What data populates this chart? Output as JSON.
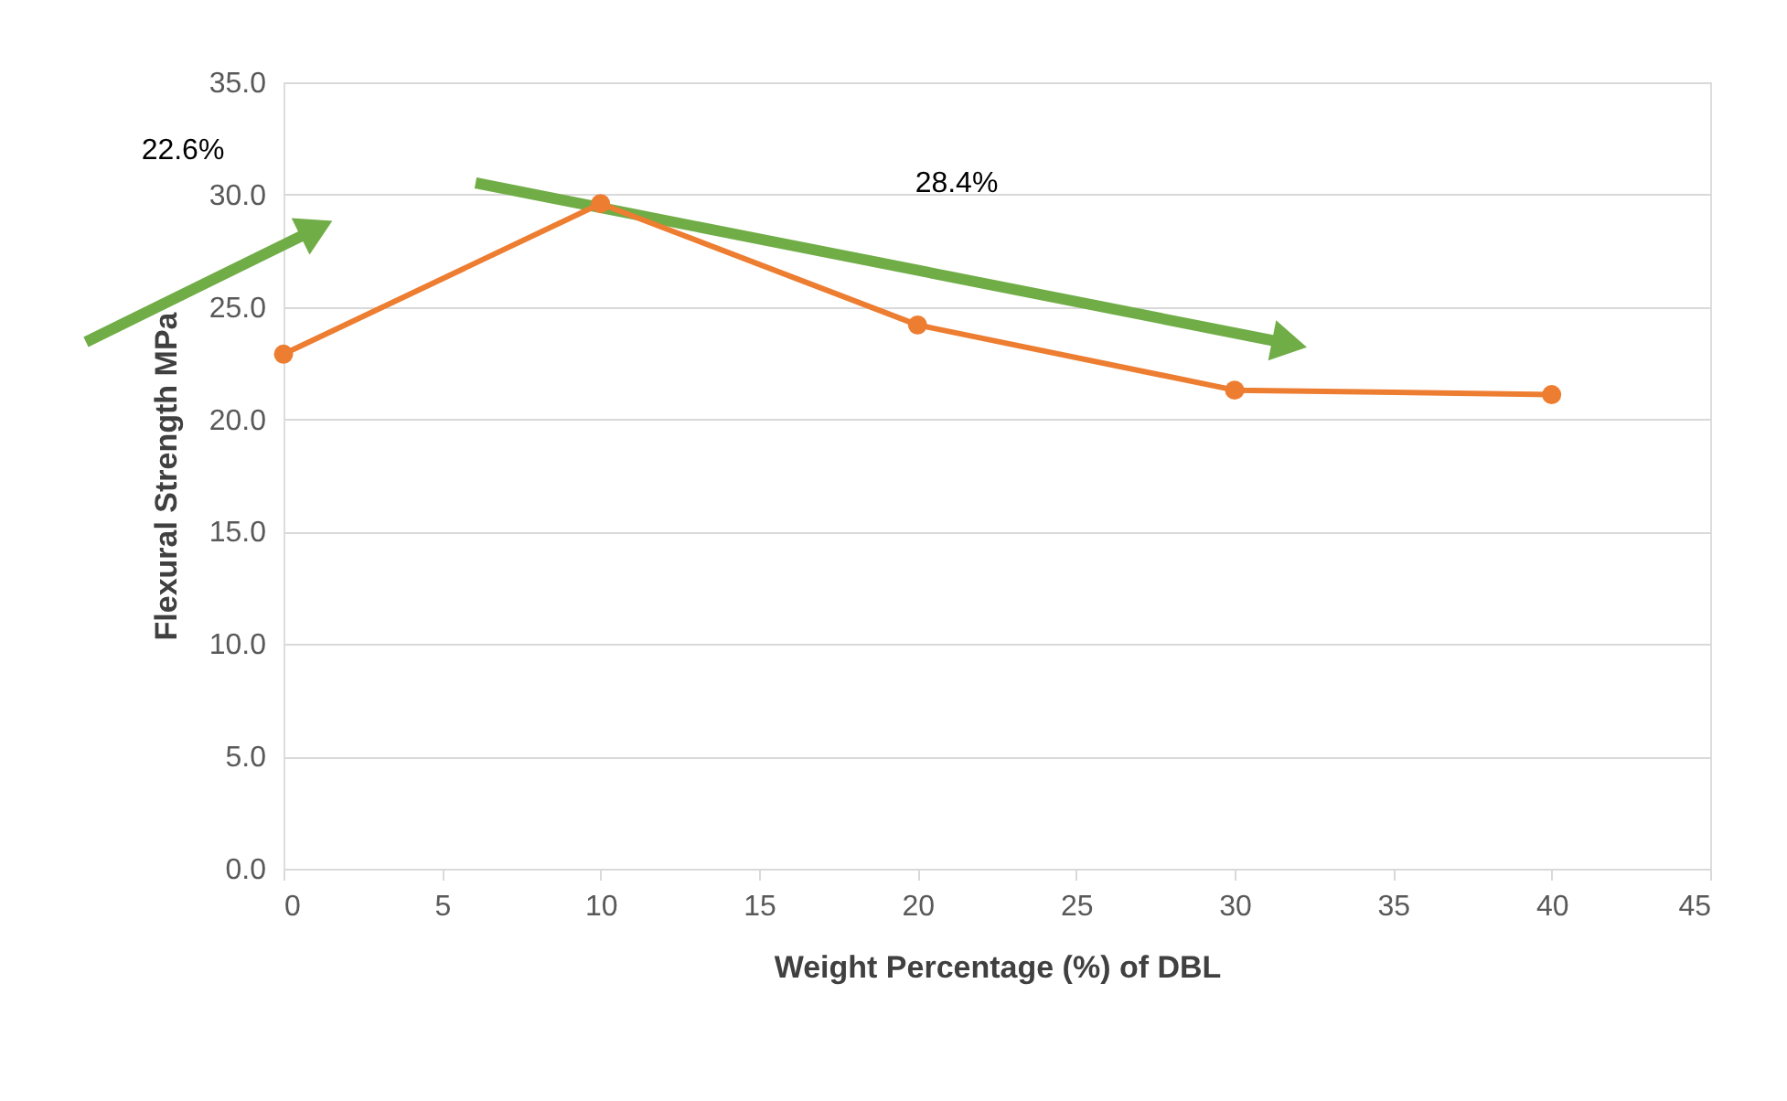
{
  "chart_data": {
    "type": "line",
    "xlabel": "Weight Percentage (%) of DBL",
    "ylabel": "Flexural Strength MPa",
    "x": [
      0,
      10,
      20,
      30,
      40
    ],
    "series": [
      {
        "color": "#ed7d31",
        "values": [
          22.9,
          29.6,
          24.2,
          21.3,
          21.1
        ]
      }
    ],
    "xlim": [
      0,
      45
    ],
    "xticks": [
      0,
      5,
      10,
      15,
      20,
      25,
      30,
      35,
      40,
      45
    ],
    "ylim": [
      0,
      35
    ],
    "yticks": [
      {
        "value": 0,
        "label": "0.0"
      },
      {
        "value": 5,
        "label": "5.0"
      },
      {
        "value": 10,
        "label": "10.0"
      },
      {
        "value": 15,
        "label": "15.0"
      },
      {
        "value": 20,
        "label": "20.0"
      },
      {
        "value": 25,
        "label": "25.0"
      },
      {
        "value": 30,
        "label": "30.0"
      },
      {
        "value": 35,
        "label": "35.0"
      }
    ],
    "annotations": [
      "22.6%",
      "28.4%"
    ],
    "grid": "y",
    "marker": "circle",
    "line_style": "solid"
  }
}
